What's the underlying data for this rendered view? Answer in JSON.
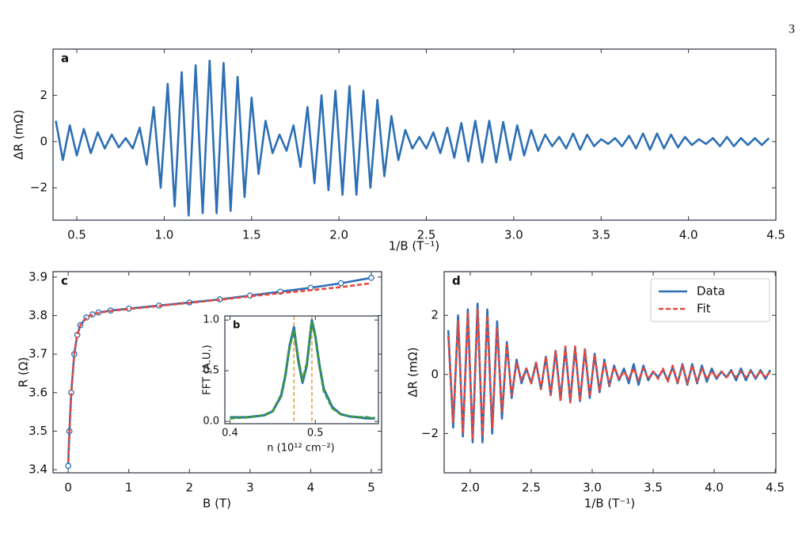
{
  "page_number": "3",
  "chart_data": [
    {
      "type": "line",
      "panel": "a",
      "xlabel": "1/B (T⁻¹)",
      "ylabel": "ΔR (mΩ)",
      "xlim": [
        0.364,
        4.5
      ],
      "ylim": [
        -3.4,
        4.0
      ],
      "xticks": [
        0.5,
        {
          "value": 1,
          "label": "1.0"
        },
        1.5,
        {
          "value": 2,
          "label": "2.0"
        },
        2.5,
        {
          "value": 3,
          "label": "3.0"
        },
        3.5,
        {
          "value": 4,
          "label": "4.0"
        },
        4.5
      ],
      "yticks": [
        {
          "value": -2,
          "label": "−2"
        },
        0,
        2
      ],
      "x": [
        0.38,
        0.42,
        0.46,
        0.5,
        0.54,
        0.58,
        0.62,
        0.66,
        0.7,
        0.74,
        0.78,
        0.82,
        0.86,
        0.9,
        0.94,
        0.98,
        1.02,
        1.06,
        1.1,
        1.14,
        1.18,
        1.22,
        1.26,
        1.3,
        1.34,
        1.38,
        1.42,
        1.46,
        1.5,
        1.54,
        1.58,
        1.62,
        1.66,
        1.7,
        1.74,
        1.78,
        1.82,
        1.86,
        1.9,
        1.94,
        1.98,
        2.02,
        2.06,
        2.1,
        2.14,
        2.18,
        2.22,
        2.26,
        2.3,
        2.34,
        2.38,
        2.42,
        2.46,
        2.5,
        2.54,
        2.58,
        2.62,
        2.66,
        2.7,
        2.74,
        2.78,
        2.82,
        2.86,
        2.9,
        2.94,
        2.98,
        3.02,
        3.06,
        3.1,
        3.14,
        3.18,
        3.22,
        3.26,
        3.3,
        3.34,
        3.38,
        3.42,
        3.46,
        3.5,
        3.54,
        3.58,
        3.62,
        3.66,
        3.7,
        3.74,
        3.78,
        3.82,
        3.86,
        3.9,
        3.94,
        3.98,
        4.02,
        4.06,
        4.1,
        4.14,
        4.18,
        4.22,
        4.26,
        4.3,
        4.34,
        4.38,
        4.42,
        4.46
      ],
      "series": [
        {
          "color": "#2c6fb5",
          "values": [
            0.9,
            -0.8,
            0.7,
            -0.6,
            0.55,
            -0.5,
            0.4,
            -0.3,
            0.3,
            -0.25,
            0.15,
            -0.3,
            0.6,
            -1.0,
            1.5,
            -2.0,
            2.5,
            -2.8,
            3.0,
            -3.2,
            3.3,
            -3.1,
            3.5,
            -3.1,
            3.4,
            -3.0,
            2.8,
            -2.4,
            1.9,
            -1.4,
            0.9,
            -0.5,
            0.3,
            -0.4,
            0.7,
            -1.1,
            1.5,
            -1.8,
            2.0,
            -2.1,
            2.2,
            -2.3,
            2.4,
            -2.3,
            2.2,
            -2.0,
            1.8,
            -1.5,
            1.1,
            -0.8,
            0.5,
            -0.3,
            0.2,
            -0.3,
            0.4,
            -0.5,
            0.6,
            -0.7,
            0.8,
            -0.85,
            0.9,
            -0.9,
            0.9,
            -0.9,
            0.85,
            -0.8,
            0.7,
            -0.6,
            0.5,
            -0.4,
            0.3,
            -0.2,
            0.2,
            -0.3,
            0.35,
            -0.35,
            0.3,
            -0.2,
            0.1,
            -0.1,
            0.15,
            -0.2,
            0.25,
            -0.3,
            0.35,
            -0.35,
            0.35,
            -0.3,
            0.3,
            -0.25,
            0.2,
            -0.15,
            0.1,
            -0.1,
            0.15,
            -0.2,
            0.2,
            -0.2,
            0.15,
            -0.15,
            0.15,
            -0.15,
            0.15
          ]
        }
      ]
    },
    {
      "type": "line",
      "panel": "c",
      "xlabel": "B (T)",
      "ylabel": "R (Ω)",
      "xlim": [
        -0.25,
        5.17
      ],
      "ylim": [
        3.392,
        3.914
      ],
      "xticks": [
        0,
        1,
        2,
        3,
        4,
        5
      ],
      "yticks": [
        3.4,
        3.5,
        3.6,
        3.7,
        3.8,
        3.9
      ],
      "x": [
        0,
        0.02,
        0.05,
        0.1,
        0.15,
        0.2,
        0.3,
        0.4,
        0.5,
        0.7,
        1,
        1.5,
        2,
        2.5,
        3,
        3.5,
        4,
        4.5,
        5
      ],
      "series": [
        {
          "color": "#2c6fb5",
          "marker": "circle",
          "values": [
            3.41,
            3.5,
            3.6,
            3.7,
            3.75,
            3.775,
            3.795,
            3.803,
            3.808,
            3.813,
            3.818,
            3.826,
            3.834,
            3.842,
            3.852,
            3.862,
            3.872,
            3.884,
            3.898
          ]
        },
        {
          "color": "#e8483c",
          "dash": true,
          "values": [
            3.42,
            3.5,
            3.6,
            3.7,
            3.75,
            3.775,
            3.794,
            3.802,
            3.807,
            3.812,
            3.817,
            3.825,
            3.833,
            3.841,
            3.85,
            3.858,
            3.866,
            3.874,
            3.884
          ]
        }
      ]
    },
    {
      "type": "line",
      "panel": "b",
      "inset": true,
      "xlabel": "n (10¹² cm⁻²)",
      "ylabel": "FFT (A.U.)",
      "xlim": [
        0.394,
        0.574
      ],
      "ylim": [
        -0.023,
        1.04
      ],
      "xticks": [
        0.4,
        0.5
      ],
      "yticks": [
        {
          "value": 0,
          "label": "0.0"
        },
        0.5,
        {
          "value": 1,
          "label": "1.0"
        }
      ],
      "vlines": [
        0.475,
        0.496
      ],
      "vline_color": "#e0a030",
      "x": [
        0.4,
        0.42,
        0.44,
        0.45,
        0.46,
        0.465,
        0.47,
        0.475,
        0.48,
        0.485,
        0.49,
        0.496,
        0.5,
        0.505,
        0.51,
        0.52,
        0.53,
        0.54,
        0.55,
        0.56,
        0.57
      ],
      "series": [
        {
          "color": "#2c6fb5",
          "values": [
            0.04,
            0.04,
            0.06,
            0.1,
            0.25,
            0.45,
            0.75,
            0.93,
            0.6,
            0.38,
            0.55,
            1.0,
            0.85,
            0.55,
            0.32,
            0.14,
            0.07,
            0.05,
            0.04,
            0.03,
            0.03
          ]
        },
        {
          "color": "#3a9a3a",
          "dash": true,
          "values": [
            0.03,
            0.04,
            0.06,
            0.1,
            0.26,
            0.46,
            0.74,
            0.9,
            0.62,
            0.4,
            0.57,
            0.98,
            0.84,
            0.54,
            0.3,
            0.13,
            0.07,
            0.05,
            0.04,
            0.04,
            0.03
          ]
        }
      ]
    },
    {
      "type": "line",
      "panel": "d",
      "xlabel": "1/B (T⁻¹)",
      "ylabel": "ΔR (mΩ)",
      "xlim": [
        1.786,
        4.506
      ],
      "ylim": [
        -3.33,
        3.48
      ],
      "legend": "upper right",
      "xticks": [
        {
          "value": 2,
          "label": "2.0"
        },
        2.5,
        {
          "value": 3,
          "label": "3.0"
        },
        3.5,
        {
          "value": 4,
          "label": "4.0"
        },
        4.5
      ],
      "yticks": [
        {
          "value": -2,
          "label": "−2"
        },
        0,
        2
      ],
      "x": [
        1.82,
        1.86,
        1.9,
        1.94,
        1.98,
        2.02,
        2.06,
        2.1,
        2.14,
        2.18,
        2.22,
        2.26,
        2.3,
        2.34,
        2.38,
        2.42,
        2.46,
        2.5,
        2.54,
        2.58,
        2.62,
        2.66,
        2.7,
        2.74,
        2.78,
        2.82,
        2.86,
        2.9,
        2.94,
        2.98,
        3.02,
        3.06,
        3.1,
        3.14,
        3.18,
        3.22,
        3.26,
        3.3,
        3.34,
        3.38,
        3.42,
        3.46,
        3.5,
        3.54,
        3.58,
        3.62,
        3.66,
        3.7,
        3.74,
        3.78,
        3.82,
        3.86,
        3.9,
        3.94,
        3.98,
        4.02,
        4.06,
        4.1,
        4.14,
        4.18,
        4.22,
        4.26,
        4.3,
        4.34,
        4.38,
        4.42,
        4.46
      ],
      "series": [
        {
          "name": "Data",
          "color": "#2c6fb5",
          "values": [
            1.5,
            -1.8,
            2.0,
            -2.1,
            2.2,
            -2.3,
            2.4,
            -2.3,
            2.2,
            -2.0,
            1.8,
            -1.5,
            1.1,
            -0.8,
            0.5,
            -0.3,
            0.2,
            -0.3,
            0.4,
            -0.5,
            0.6,
            -0.7,
            0.8,
            -0.85,
            0.9,
            -0.9,
            0.9,
            -0.9,
            0.85,
            -0.8,
            0.7,
            -0.6,
            0.5,
            -0.4,
            0.3,
            -0.2,
            0.2,
            -0.3,
            0.35,
            -0.35,
            0.3,
            -0.2,
            0.1,
            -0.1,
            0.15,
            -0.2,
            0.25,
            -0.3,
            0.35,
            -0.35,
            0.35,
            -0.3,
            0.3,
            -0.25,
            0.2,
            -0.15,
            0.1,
            -0.1,
            0.15,
            -0.2,
            0.2,
            -0.2,
            0.15,
            -0.15,
            0.15,
            -0.15,
            0.15
          ]
        },
        {
          "name": "Fit",
          "color": "#e8483c",
          "dash": true,
          "values": [
            1.3,
            -1.6,
            1.8,
            -2.0,
            2.1,
            -2.2,
            2.2,
            -2.1,
            2.0,
            -1.8,
            1.6,
            -1.3,
            1.0,
            -0.7,
            0.4,
            -0.2,
            0.2,
            -0.3,
            0.4,
            -0.5,
            0.6,
            -0.7,
            0.8,
            -0.9,
            0.95,
            -0.95,
            0.95,
            -0.9,
            0.85,
            -0.75,
            0.65,
            -0.55,
            0.45,
            -0.35,
            0.25,
            -0.15,
            0.1,
            -0.15,
            0.2,
            -0.2,
            0.2,
            -0.15,
            0.1,
            -0.15,
            0.2,
            -0.25,
            0.3,
            -0.3,
            0.3,
            -0.3,
            0.3,
            -0.25,
            0.2,
            -0.15,
            0.1,
            -0.1,
            0.1,
            -0.1,
            0.1,
            -0.1,
            0.1,
            -0.1,
            0.1,
            -0.1,
            0.1,
            -0.1,
            0.1
          ]
        }
      ]
    }
  ]
}
